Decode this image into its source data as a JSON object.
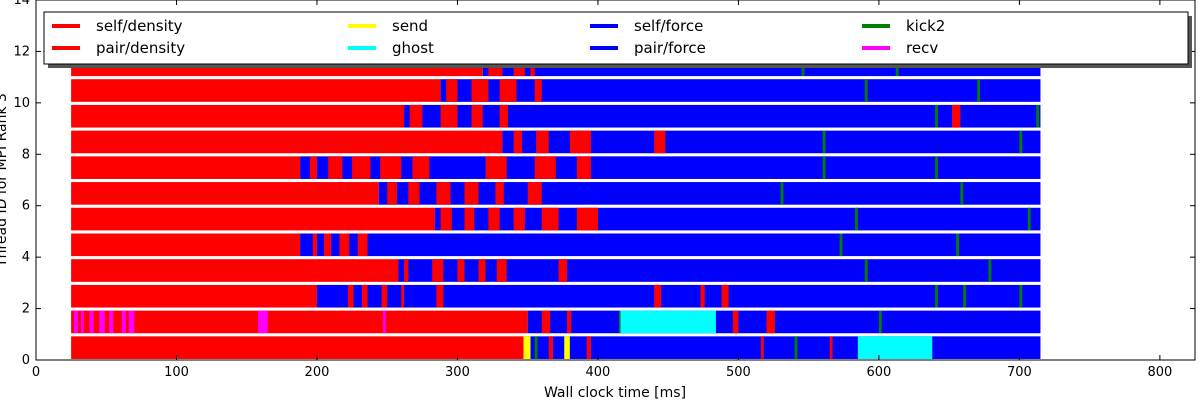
{
  "chart_data": {
    "type": "timeline",
    "title": "",
    "xlabel": "Wall clock time [ms]",
    "ylabel": "Thread ID for MPI Rank 3",
    "xlim": [
      0,
      825
    ],
    "ylim": [
      0,
      14
    ],
    "xticks": [
      0,
      100,
      200,
      300,
      400,
      500,
      600,
      700,
      800
    ],
    "yticks": [
      0,
      2,
      4,
      6,
      8,
      10,
      12,
      14
    ],
    "grid": false,
    "legend_position": "top",
    "legend": [
      {
        "name": "self/density",
        "color": "#ff0000"
      },
      {
        "name": "pair/density",
        "color": "#ff0000"
      },
      {
        "name": "send",
        "color": "#ffff00"
      },
      {
        "name": "ghost",
        "color": "#00ffff"
      },
      {
        "name": "self/force",
        "color": "#0000ff"
      },
      {
        "name": "pair/force",
        "color": "#0000ff"
      },
      {
        "name": "kick2",
        "color": "#008000"
      },
      {
        "name": "recv",
        "color": "#ff00ff"
      }
    ],
    "t_start": 25,
    "t_end": 715,
    "threads": [
      {
        "id": 0,
        "density_end": 348,
        "ghost": [
          [
            585,
            638
          ]
        ],
        "send": [
          [
            347,
            352
          ],
          [
            376,
            380
          ]
        ],
        "recv": [],
        "kick": [
          [
            355,
            357
          ],
          [
            540,
            542
          ]
        ],
        "extra_red": [
          [
            365,
            368
          ],
          [
            392,
            395
          ],
          [
            516,
            518
          ],
          [
            565,
            567
          ]
        ]
      },
      {
        "id": 1,
        "density_end": 350,
        "ghost": [
          [
            416,
            484
          ]
        ],
        "send": [],
        "recv": [
          [
            27,
            30
          ],
          [
            32,
            34
          ],
          [
            38,
            41
          ],
          [
            45,
            49
          ],
          [
            52,
            55
          ],
          [
            61,
            64
          ],
          [
            66,
            70
          ],
          [
            158,
            165
          ],
          [
            247,
            249
          ]
        ],
        "kick": [
          [
            415,
            416
          ],
          [
            600,
            602
          ]
        ],
        "extra_red": [
          [
            360,
            366
          ],
          [
            378,
            381
          ],
          [
            496,
            500
          ],
          [
            520,
            526
          ]
        ]
      },
      {
        "id": 2,
        "density_end": 200,
        "ghost": [],
        "send": [],
        "recv": [],
        "kick": [
          [
            640,
            642
          ],
          [
            660,
            662
          ],
          [
            700,
            702
          ]
        ],
        "extra_red": [
          [
            222,
            226
          ],
          [
            232,
            236
          ],
          [
            246,
            250
          ],
          [
            260,
            262
          ],
          [
            285,
            290
          ],
          [
            440,
            445
          ],
          [
            473,
            476
          ],
          [
            488,
            493
          ]
        ]
      },
      {
        "id": 3,
        "density_end": 258,
        "ghost": [],
        "send": [],
        "recv": [],
        "kick": [
          [
            590,
            592
          ],
          [
            678,
            680
          ]
        ],
        "extra_red": [
          [
            262,
            265
          ],
          [
            282,
            290
          ],
          [
            300,
            305
          ],
          [
            315,
            320
          ],
          [
            328,
            335
          ],
          [
            372,
            378
          ]
        ]
      },
      {
        "id": 4,
        "density_end": 188,
        "ghost": [],
        "send": [],
        "recv": [],
        "kick": [
          [
            572,
            574
          ],
          [
            655,
            657
          ]
        ],
        "extra_red": [
          [
            197,
            200
          ],
          [
            205,
            210
          ],
          [
            216,
            223
          ],
          [
            229,
            236
          ]
        ]
      },
      {
        "id": 5,
        "density_end": 284,
        "ghost": [],
        "send": [],
        "recv": [],
        "kick": [
          [
            583,
            585
          ],
          [
            706,
            708
          ]
        ],
        "extra_red": [
          [
            288,
            296
          ],
          [
            305,
            312
          ],
          [
            322,
            330
          ],
          [
            340,
            348
          ],
          [
            360,
            372
          ],
          [
            385,
            400
          ]
        ]
      },
      {
        "id": 6,
        "density_end": 244,
        "ghost": [],
        "send": [],
        "recv": [],
        "kick": [
          [
            530,
            532
          ],
          [
            658,
            660
          ]
        ],
        "extra_red": [
          [
            250,
            257
          ],
          [
            265,
            273
          ],
          [
            285,
            295
          ],
          [
            305,
            315
          ],
          [
            327,
            333
          ],
          [
            350,
            360
          ]
        ]
      },
      {
        "id": 7,
        "density_end": 188,
        "ghost": [],
        "send": [],
        "recv": [],
        "kick": [
          [
            560,
            562
          ],
          [
            640,
            642
          ]
        ],
        "extra_red": [
          [
            195,
            200
          ],
          [
            208,
            218
          ],
          [
            225,
            238
          ],
          [
            245,
            260
          ],
          [
            268,
            280
          ],
          [
            320,
            335
          ],
          [
            355,
            370
          ],
          [
            385,
            395
          ]
        ]
      },
      {
        "id": 8,
        "density_end": 332,
        "ghost": [],
        "send": [],
        "recv": [],
        "kick": [
          [
            560,
            562
          ],
          [
            700,
            702
          ]
        ],
        "extra_red": [
          [
            340,
            346
          ],
          [
            356,
            365
          ],
          [
            380,
            395
          ],
          [
            440,
            448
          ]
        ]
      },
      {
        "id": 9,
        "density_end": 262,
        "ghost": [],
        "send": [],
        "recv": [],
        "kick": [
          [
            640,
            642
          ],
          [
            712,
            714
          ]
        ],
        "extra_red": [
          [
            266,
            275
          ],
          [
            288,
            300
          ],
          [
            310,
            318
          ],
          [
            330,
            336
          ],
          [
            652,
            658
          ]
        ]
      },
      {
        "id": 10,
        "density_end": 288,
        "ghost": [],
        "send": [],
        "recv": [],
        "kick": [
          [
            590,
            592
          ],
          [
            670,
            672
          ]
        ],
        "extra_red": [
          [
            292,
            300
          ],
          [
            310,
            322
          ],
          [
            330,
            342
          ],
          [
            355,
            360
          ]
        ]
      },
      {
        "id": 11,
        "density_end": 318,
        "ghost": [],
        "send": [],
        "recv": [],
        "kick": [
          [
            545,
            547
          ],
          [
            612,
            614
          ]
        ],
        "extra_red": [
          [
            322,
            332
          ],
          [
            340,
            348
          ],
          [
            352,
            355
          ]
        ]
      }
    ]
  }
}
